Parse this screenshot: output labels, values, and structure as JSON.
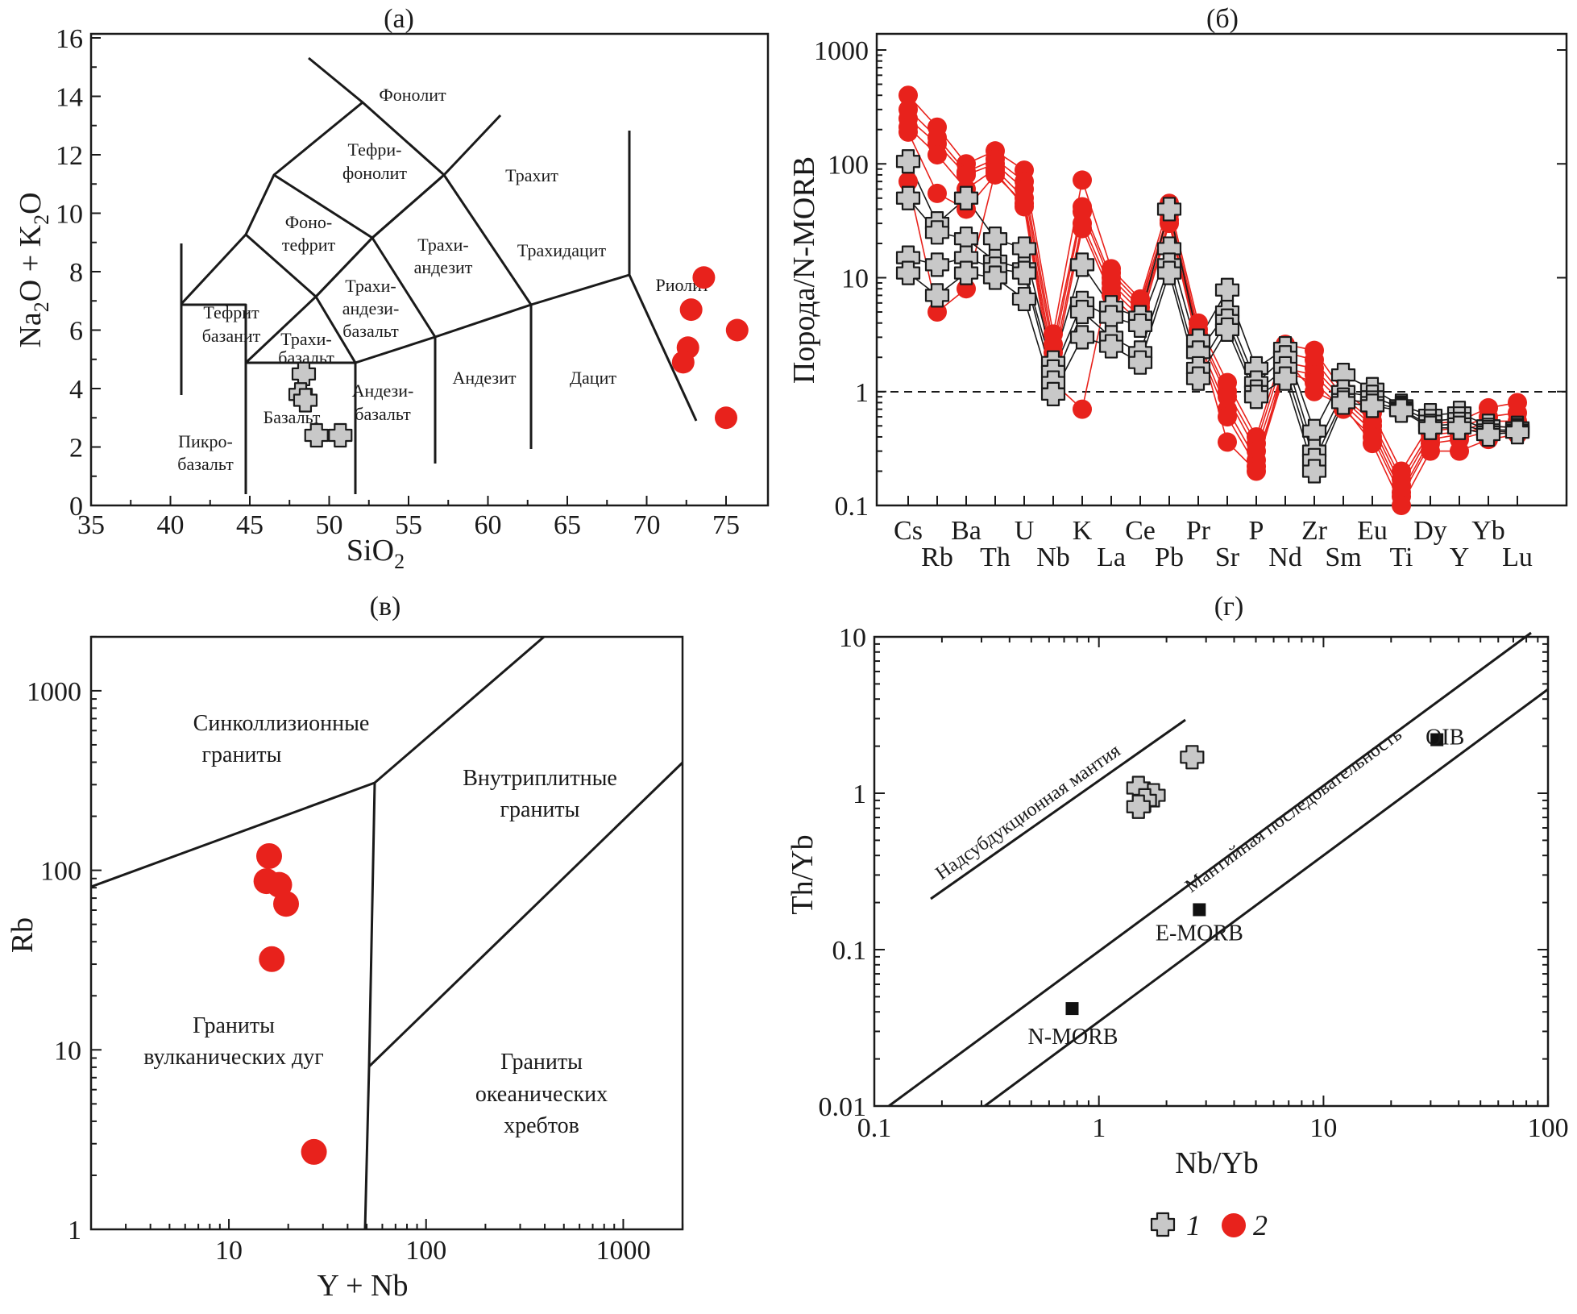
{
  "figure_panels": [
    "(a)",
    "(б)",
    "(в)",
    "(г)"
  ],
  "legend": {
    "series1": "1",
    "series2": "2"
  },
  "colors": {
    "series2": "#e8221c",
    "series1_fill": "#c8c8c8",
    "ink": "#1a1a1a"
  },
  "chart_data": [
    {
      "id": "a",
      "type": "scatter",
      "title": "(a)",
      "xlabel": "SiO2",
      "ylabel": "Na2O + K2O",
      "xlim": [
        35,
        77
      ],
      "ylim": [
        0,
        16
      ],
      "xticks": [
        35,
        40,
        45,
        50,
        55,
        60,
        65,
        70,
        75
      ],
      "yticks": [
        0,
        2,
        4,
        6,
        8,
        10,
        12,
        14,
        16
      ],
      "field_labels": [
        "Фонолит",
        "Тефри-",
        "фонолит",
        "Трахит",
        "Фоно-",
        "тефрит",
        "Трахи-",
        "андезит",
        "Трахидацит",
        "Трахи-",
        "андези-",
        "базальт",
        "Тефрит",
        "базанит",
        "Трахи-",
        "базальт",
        "Риолит",
        "Андези-",
        "базальт",
        "Андезит",
        "Дацит",
        "Базальт",
        "Пикро-",
        "базальт"
      ],
      "series": [
        {
          "name": "1",
          "marker": "cross",
          "points": [
            [
              48.4,
              4.5
            ],
            [
              48.2,
              3.8
            ],
            [
              48.5,
              3.6
            ],
            [
              49.2,
              2.4
            ],
            [
              50.7,
              2.4
            ]
          ]
        },
        {
          "name": "2",
          "marker": "circle",
          "points": [
            [
              73.6,
              7.8
            ],
            [
              72.8,
              6.7
            ],
            [
              75.7,
              6.0
            ],
            [
              72.6,
              5.4
            ],
            [
              72.3,
              4.9
            ],
            [
              75.0,
              3.0
            ]
          ]
        }
      ]
    },
    {
      "id": "б",
      "type": "line",
      "title": "(б)",
      "ylabel": "Порода/N-MORB",
      "yscale": "log",
      "ylim": [
        0.1,
        1000
      ],
      "yticks": [
        "0.1",
        "1",
        "10",
        "100",
        "1000"
      ],
      "reference_line": 1,
      "categories": [
        "Cs",
        "Rb",
        "Ba",
        "Th",
        "U",
        "Nb",
        "K",
        "La",
        "Ce",
        "Pb",
        "Pr",
        "Sr",
        "P",
        "Nd",
        "Zr",
        "Sm",
        "Eu",
        "Ti",
        "Dy",
        "Y",
        "Yb",
        "Lu"
      ],
      "series": [
        {
          "name": "2",
          "marker": "circle",
          "values": [
            400,
            210,
            100,
            130,
            88,
            3.2,
            72,
            12,
            6.5,
            45,
            4,
            1.2,
            0.4,
            2.6,
            2.3,
            1.0,
            0.65,
            0.2,
            0.52,
            0.55,
            0.72,
            0.8
          ]
        },
        {
          "name": "2",
          "marker": "circle",
          "values": [
            300,
            170,
            85,
            110,
            70,
            2.6,
            42,
            10,
            5.5,
            40,
            3.5,
            1.0,
            0.35,
            2.2,
            1.9,
            0.9,
            0.55,
            0.17,
            0.45,
            0.48,
            0.6,
            0.65
          ]
        },
        {
          "name": "2",
          "marker": "circle",
          "values": [
            250,
            150,
            80,
            100,
            60,
            2.2,
            38,
            9,
            5,
            36,
            3.2,
            0.9,
            0.3,
            1.8,
            1.6,
            0.85,
            0.5,
            0.15,
            0.42,
            0.44,
            0.55,
            0.55
          ]
        },
        {
          "name": "2",
          "marker": "circle",
          "values": [
            210,
            120,
            60,
            90,
            50,
            1.8,
            30,
            8,
            4.5,
            32,
            2.8,
            0.7,
            0.25,
            1.6,
            1.4,
            0.78,
            0.45,
            0.13,
            0.38,
            0.42,
            0.5,
            0.48
          ]
        },
        {
          "name": "2",
          "marker": "circle",
          "values": [
            190,
            55,
            40,
            80,
            45,
            1.5,
            27,
            7,
            4,
            30,
            2.5,
            0.6,
            0.22,
            1.5,
            1.2,
            0.7,
            0.4,
            0.12,
            0.35,
            0.38,
            0.45,
            0.44
          ]
        },
        {
          "name": "2",
          "marker": "circle",
          "values": [
            70,
            5,
            8,
            85,
            42,
            1.2,
            0.7,
            11,
            6,
            38,
            3,
            0.36,
            0.2,
            1.9,
            1.0,
            0.75,
            0.35,
            0.1,
            0.3,
            0.3,
            0.38,
            0.42
          ]
        },
        {
          "name": "1",
          "marker": "cross",
          "values": [
            105,
            30,
            50,
            22,
            18,
            1.8,
            13,
            5.5,
            4.5,
            40,
            2.8,
            7.8,
            1.6,
            2.4,
            0.45,
            1.4,
            1.05,
            0.75,
            0.62,
            0.65,
            0.5,
            0.48
          ]
        },
        {
          "name": "1",
          "marker": "cross",
          "values": [
            50,
            25,
            22,
            14,
            12,
            1.5,
            6,
            4.5,
            3.8,
            18,
            2.2,
            5,
            1.2,
            2.0,
            0.3,
            1.0,
            0.9,
            0.72,
            0.55,
            0.58,
            0.46,
            0.46
          ]
        },
        {
          "name": "1",
          "marker": "cross",
          "values": [
            15,
            13,
            15,
            12,
            11,
            1.2,
            5,
            3,
            2.2,
            13,
            1.6,
            4.2,
            1.0,
            1.6,
            0.25,
            0.85,
            0.8,
            0.7,
            0.5,
            0.52,
            0.44,
            0.45
          ]
        },
        {
          "name": "1",
          "marker": "cross",
          "values": [
            11,
            7,
            11,
            10,
            6.5,
            0.95,
            3,
            2.5,
            1.8,
            11,
            1.3,
            3.5,
            0.9,
            1.3,
            0.2,
            0.8,
            0.75,
            0.68,
            0.48,
            0.48,
            0.42,
            0.44
          ]
        }
      ]
    },
    {
      "id": "в",
      "type": "scatter",
      "title": "(в)",
      "xlabel": "Y + Nb",
      "ylabel": "Rb",
      "xscale": "log",
      "yscale": "log",
      "xlim": [
        2,
        2000
      ],
      "ylim": [
        1,
        2000
      ],
      "xticks": [
        "10",
        "100",
        "1000"
      ],
      "yticks": [
        "1",
        "10",
        "100",
        "1000"
      ],
      "field_labels": [
        "Синколлизионные",
        "граниты",
        "Внутриплитные",
        "граниты",
        "Граниты",
        "вулканических дуг",
        "Граниты",
        "океанических",
        "хребтов"
      ],
      "series": [
        {
          "name": "2",
          "marker": "circle",
          "points": [
            [
              16,
              120
            ],
            [
              15.5,
              87
            ],
            [
              18,
              83
            ],
            [
              19.5,
              65
            ],
            [
              16.5,
              32
            ],
            [
              27,
              2.7
            ]
          ]
        }
      ]
    },
    {
      "id": "г",
      "type": "scatter",
      "title": "(г)",
      "xlabel": "Nb/Yb",
      "ylabel": "Th/Yb",
      "xscale": "log",
      "yscale": "log",
      "xlim": [
        0.1,
        100
      ],
      "ylim": [
        0.01,
        10
      ],
      "xticks": [
        "0.1",
        "1",
        "10",
        "100"
      ],
      "yticks": [
        "0.01",
        "0.1",
        "1",
        "10"
      ],
      "line_labels": [
        "Надсубдукционная мантия",
        "Мантийная последовательность"
      ],
      "reference_points": [
        {
          "label": "N-MORB",
          "x": 0.76,
          "y": 0.042
        },
        {
          "label": "E-MORB",
          "x": 2.8,
          "y": 0.18
        },
        {
          "label": "OIB",
          "x": 32,
          "y": 2.2
        }
      ],
      "series": [
        {
          "name": "1",
          "marker": "cross",
          "points": [
            [
              2.6,
              1.7
            ],
            [
              1.5,
              1.08
            ],
            [
              1.75,
              0.97
            ],
            [
              1.6,
              0.9
            ],
            [
              1.5,
              0.82
            ]
          ]
        }
      ]
    }
  ]
}
